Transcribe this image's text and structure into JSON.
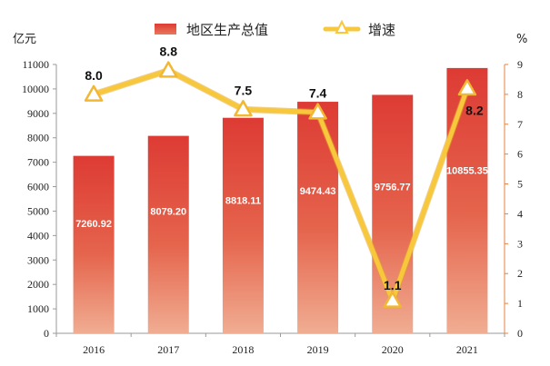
{
  "chart_data": {
    "type": "bar",
    "categories": [
      "2016",
      "2017",
      "2018",
      "2019",
      "2020",
      "2021"
    ],
    "series": [
      {
        "name": "地区生产总值",
        "type": "bar",
        "axis": "left",
        "values": [
          7260.92,
          8079.2,
          8818.11,
          9474.43,
          9756.77,
          10855.35
        ],
        "labels": [
          "7260.92",
          "8079.20",
          "8818.11",
          "9474.43",
          "9756.77",
          "10855.35"
        ]
      },
      {
        "name": "增速",
        "type": "line",
        "axis": "right",
        "values": [
          8.0,
          8.8,
          7.5,
          7.4,
          1.1,
          8.2
        ],
        "labels": [
          "8.0",
          "8.8",
          "7.5",
          "7.4",
          "1.1",
          "8.2"
        ]
      }
    ],
    "y_left": {
      "label": "亿元",
      "ylim": [
        0,
        11000
      ],
      "ticks": [
        "0",
        "1000",
        "2000",
        "3000",
        "4000",
        "5000",
        "6000",
        "7000",
        "8000",
        "9000",
        "10000",
        "11000"
      ]
    },
    "y_right": {
      "label": "%",
      "ylim": [
        0,
        9
      ],
      "ticks": [
        "0",
        "1",
        "2",
        "3",
        "4",
        "5",
        "6",
        "7",
        "8",
        "9"
      ]
    },
    "grid": false,
    "legend": "top-center",
    "colors": {
      "bar_top": "#dd3b34",
      "bar_bottom": "#f0a98e",
      "line": "#f7c83c",
      "line_outline": "#e6a52a",
      "axis_left": "#9a9a9a",
      "axis_right": "#e8803e"
    }
  }
}
